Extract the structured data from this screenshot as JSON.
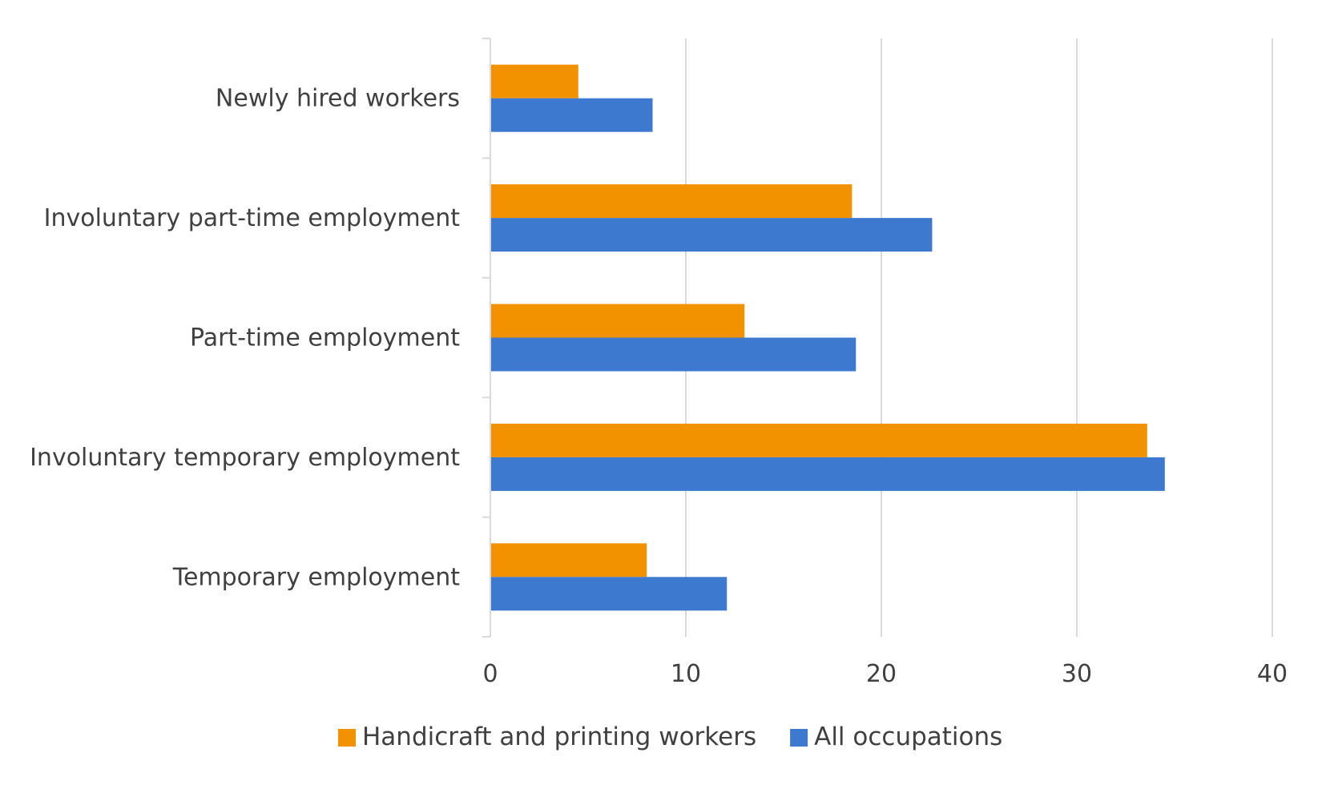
{
  "chart_data": {
    "type": "bar",
    "orientation": "horizontal",
    "categories": [
      "Newly hired workers",
      "Involuntary part-time employment",
      "Part-time employment",
      "Involuntary temporary employment",
      "Temporary employment"
    ],
    "series": [
      {
        "name": "Handicraft and printing workers",
        "color": "#F39200",
        "values": [
          4.5,
          18.5,
          13.0,
          33.6,
          8.0
        ]
      },
      {
        "name": "All occupations",
        "color": "#3D7ACF",
        "values": [
          8.3,
          22.6,
          18.7,
          34.5,
          12.1
        ]
      }
    ],
    "xlim": [
      0,
      40
    ],
    "xticks": [
      0,
      10,
      20,
      30,
      40
    ],
    "xtick_labels": [
      "0",
      "10",
      "20",
      "30",
      "40"
    ],
    "grid": "vertical",
    "legend_position": "bottom"
  }
}
